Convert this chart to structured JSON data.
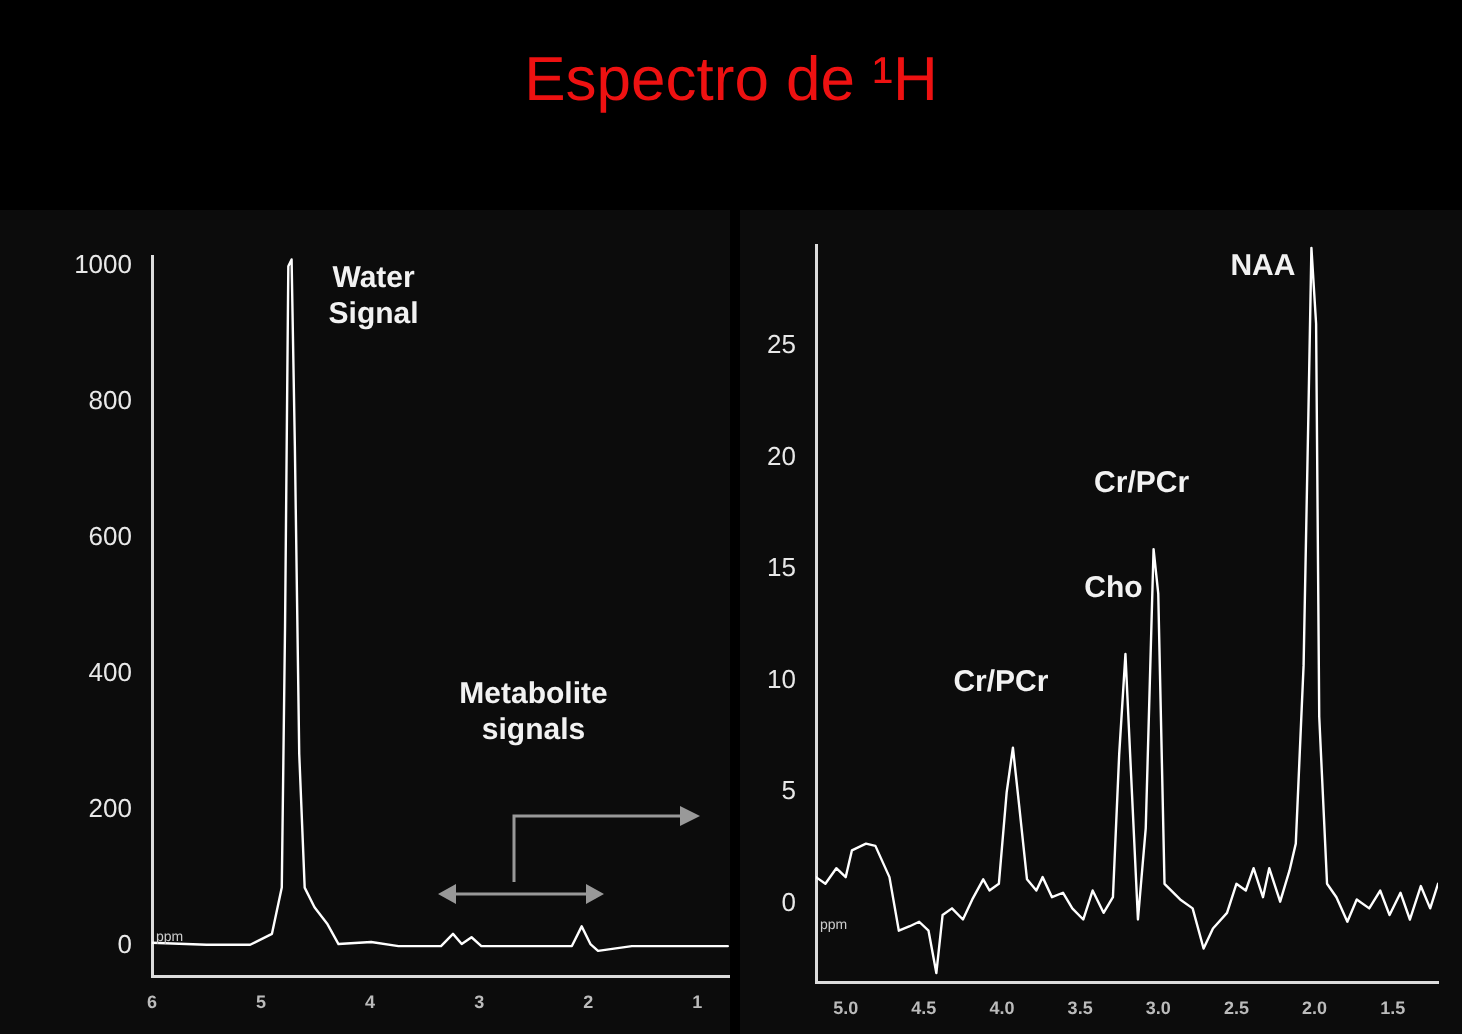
{
  "chart_data": [
    {
      "type": "line",
      "title": "Espectro de ¹H",
      "xlabel": "ppm",
      "marker": "none",
      "grid": false,
      "legend": false,
      "xlim": [
        6,
        0.7
      ],
      "xticks": [
        6,
        5,
        4,
        3,
        2,
        1
      ],
      "ylim": [
        -44,
        1015
      ],
      "yticks": [
        0,
        200,
        400,
        600,
        800,
        1000
      ],
      "series": [
        {
          "color": "#ffffff",
          "x": [
            6.0,
            5.5,
            5.1,
            4.9,
            4.81,
            4.78,
            4.75,
            4.72,
            4.69,
            4.65,
            4.6,
            4.51,
            4.39,
            4.29,
            3.99,
            3.74,
            3.35,
            3.24,
            3.16,
            3.07,
            2.98,
            2.15,
            2.06,
            1.98,
            1.91,
            1.6,
            0.72
          ],
          "values": [
            5,
            2,
            2,
            18,
            86,
            470,
            1000,
            1010,
            735,
            283,
            86,
            57,
            32,
            3,
            6,
            0,
            0,
            18,
            3,
            13,
            0,
            0,
            29,
            3,
            -7,
            0,
            0
          ]
        }
      ],
      "annotations": [
        {
          "text": "Water Signal",
          "x": 4.72,
          "y": 1010
        },
        "Metabolite signals"
      ]
    },
    {
      "type": "line",
      "xlabel": "ppm",
      "marker": "none",
      "grid": false,
      "legend": false,
      "xlim": [
        5.19,
        1.21
      ],
      "xticks": [
        {
          "value": 5,
          "label": "5.0"
        },
        {
          "value": 4.5,
          "label": "4.5"
        },
        {
          "value": 4,
          "label": "4.0"
        },
        {
          "value": 3.5,
          "label": "3.5"
        },
        {
          "value": 3,
          "label": "3.0"
        },
        {
          "value": 2.5,
          "label": "2.5"
        },
        {
          "value": 2,
          "label": "2.0"
        },
        {
          "value": 1.5,
          "label": "1.5"
        }
      ],
      "ylim": [
        -3.5,
        29.5
      ],
      "yticks": [
        0,
        5,
        10,
        15,
        20,
        25
      ],
      "series": [
        {
          "color": "#ffffff",
          "x": [
            5.19,
            5.13,
            5.06,
            5.0,
            4.96,
            4.87,
            4.81,
            4.72,
            4.66,
            4.59,
            4.53,
            4.47,
            4.42,
            4.38,
            4.32,
            4.25,
            4.19,
            4.12,
            4.08,
            4.02,
            3.97,
            3.93,
            3.89,
            3.84,
            3.78,
            3.74,
            3.68,
            3.61,
            3.55,
            3.48,
            3.42,
            3.35,
            3.29,
            3.25,
            3.21,
            3.18,
            3.13,
            3.08,
            3.03,
            3.0,
            2.96,
            2.86,
            2.78,
            2.71,
            2.65,
            2.56,
            2.5,
            2.44,
            2.39,
            2.33,
            2.29,
            2.22,
            2.16,
            2.12,
            2.07,
            2.04,
            2.02,
            1.99,
            1.97,
            1.92,
            1.86,
            1.79,
            1.73,
            1.65,
            1.58,
            1.52,
            1.45,
            1.39,
            1.32,
            1.26,
            1.21
          ],
          "values": [
            1.2,
            0.9,
            1.6,
            1.2,
            2.4,
            2.7,
            2.6,
            1.2,
            -1.2,
            -1.0,
            -0.8,
            -1.2,
            -3.1,
            -0.5,
            -0.2,
            -0.7,
            0.2,
            1.1,
            0.6,
            0.9,
            5.0,
            7.0,
            4.4,
            1.1,
            0.6,
            1.2,
            0.3,
            0.5,
            -0.2,
            -0.7,
            0.6,
            -0.4,
            0.3,
            6.7,
            11.2,
            6.7,
            -0.7,
            3.4,
            15.9,
            13.9,
            0.9,
            0.2,
            -0.2,
            -2.0,
            -1.1,
            -0.4,
            0.9,
            0.6,
            1.6,
            0.3,
            1.6,
            0.1,
            1.5,
            2.7,
            10.7,
            21.7,
            29.4,
            26.0,
            8.4,
            0.9,
            0.3,
            -0.8,
            0.2,
            -0.2,
            0.6,
            -0.5,
            0.5,
            -0.7,
            0.8,
            -0.2,
            0.9
          ]
        }
      ],
      "annotations": [
        {
          "text": "Cr/PCr",
          "x": 3.93,
          "y": 7.0
        },
        {
          "text": "Cho",
          "x": 3.21,
          "y": 11.2
        },
        {
          "text": "Cr/PCr",
          "x": 3.03,
          "y": 15.9
        },
        {
          "text": "NAA",
          "x": 2.02,
          "y": 29.4
        }
      ]
    }
  ]
}
